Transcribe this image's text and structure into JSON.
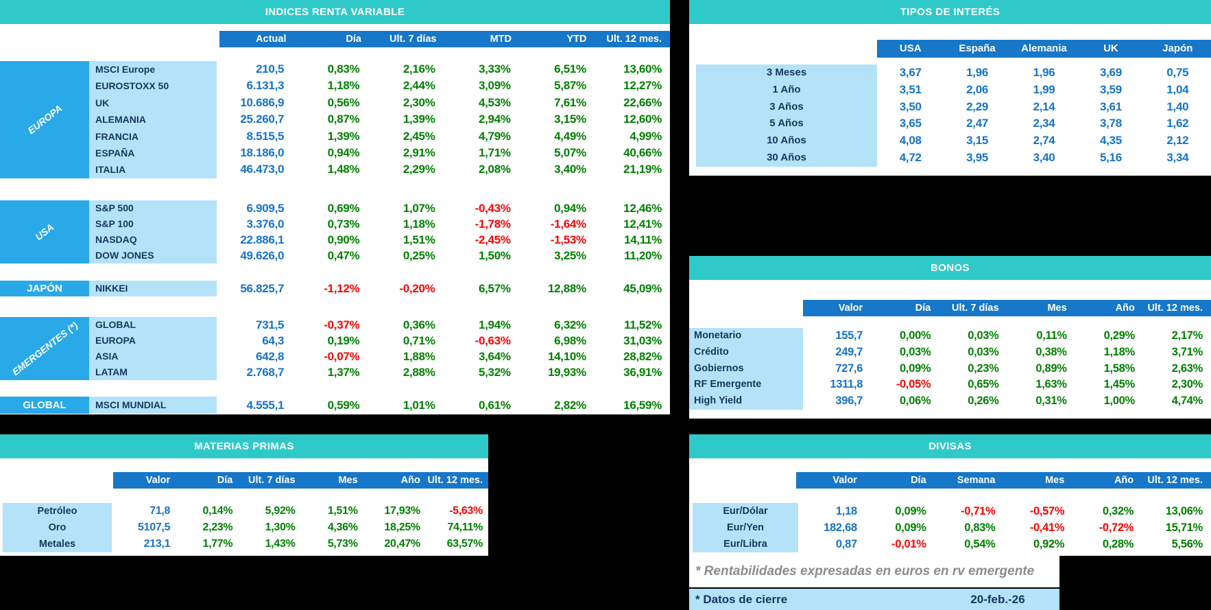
{
  "colors": {
    "teal": "#2FC9C9",
    "header_blue": "#1777C8",
    "group_blue": "#29A9E8",
    "light_blue": "#B3E2F9",
    "navy": "#17375D",
    "value_blue": "#1673C8",
    "positive_green": "#008000",
    "negative_red": "#FF0000",
    "footnote_gray": "#8C8C8C",
    "background": "#000000"
  },
  "footnotes": {
    "emergente_note": "* Rentabilidades expresadas en euros en rv emergente",
    "cierre_label": "* Datos de cierre",
    "cierre_date": "20-feb.-26"
  },
  "chart_data": [
    {
      "id": "indices",
      "type": "table",
      "title": "INDICES RENTA VARIABLE",
      "columns": [
        "Actual",
        "Día",
        "Ult. 7 días",
        "MTD",
        "YTD",
        "Ult. 12 mes."
      ],
      "row_groups": [
        {
          "group": "EUROPA",
          "rows": [
            {
              "name": "MSCI Europe",
              "values": [
                "210,5",
                "0,83%",
                "2,16%",
                "3,33%",
                "6,51%",
                "13,60%"
              ]
            },
            {
              "name": "EUROSTOXX 50",
              "values": [
                "6.131,3",
                "1,18%",
                "2,44%",
                "3,09%",
                "5,87%",
                "12,27%"
              ]
            },
            {
              "name": "UK",
              "values": [
                "10.686,9",
                "0,56%",
                "2,30%",
                "4,53%",
                "7,61%",
                "22,66%"
              ]
            },
            {
              "name": "ALEMANIA",
              "values": [
                "25.260,7",
                "0,87%",
                "1,39%",
                "2,94%",
                "3,15%",
                "12,60%"
              ]
            },
            {
              "name": "FRANCIA",
              "values": [
                "8.515,5",
                "1,39%",
                "2,45%",
                "4,79%",
                "4,49%",
                "4,99%"
              ]
            },
            {
              "name": "ESPAÑA",
              "values": [
                "18.186,0",
                "0,94%",
                "2,91%",
                "1,71%",
                "5,07%",
                "40,66%"
              ]
            },
            {
              "name": "ITALIA",
              "values": [
                "46.473,0",
                "1,48%",
                "2,29%",
                "2,08%",
                "3,40%",
                "21,19%"
              ]
            }
          ]
        },
        {
          "group": "USA",
          "rows": [
            {
              "name": "S&P 500",
              "values": [
                "6.909,5",
                "0,69%",
                "1,07%",
                "-0,43%",
                "0,94%",
                "12,46%"
              ]
            },
            {
              "name": "S&P 100",
              "values": [
                "3.376,0",
                "0,73%",
                "1,18%",
                "-1,78%",
                "-1,64%",
                "12,41%"
              ]
            },
            {
              "name": "NASDAQ",
              "values": [
                "22.886,1",
                "0,90%",
                "1,51%",
                "-2,45%",
                "-1,53%",
                "14,11%"
              ]
            },
            {
              "name": "DOW JONES",
              "values": [
                "49.626,0",
                "0,47%",
                "0,25%",
                "1,50%",
                "3,25%",
                "11,20%"
              ]
            }
          ]
        },
        {
          "group": "JAPÓN",
          "rows": [
            {
              "name": "NIKKEI",
              "values": [
                "56.825,7",
                "-1,12%",
                "-0,20%",
                "6,57%",
                "12,88%",
                "45,09%"
              ]
            }
          ]
        },
        {
          "group": "EMERGENTES (*)",
          "rows": [
            {
              "name": "GLOBAL",
              "values": [
                "731,5",
                "-0,37%",
                "0,36%",
                "1,94%",
                "6,32%",
                "11,52%"
              ]
            },
            {
              "name": "EUROPA",
              "values": [
                "64,3",
                "0,19%",
                "0,71%",
                "-0,63%",
                "6,98%",
                "31,03%"
              ]
            },
            {
              "name": "ASIA",
              "values": [
                "642,8",
                "-0,07%",
                "1,88%",
                "3,64%",
                "14,10%",
                "28,82%"
              ]
            },
            {
              "name": "LATAM",
              "values": [
                "2.768,7",
                "1,37%",
                "2,88%",
                "5,32%",
                "19,93%",
                "36,91%"
              ]
            }
          ]
        },
        {
          "group": "GLOBAL",
          "rows": [
            {
              "name": "MSCI MUNDIAL",
              "values": [
                "4.555,1",
                "0,59%",
                "1,01%",
                "0,61%",
                "2,82%",
                "16,59%"
              ]
            }
          ]
        }
      ]
    },
    {
      "id": "tipos",
      "type": "table",
      "title": "TIPOS DE INTERÉS",
      "columns": [
        "USA",
        "España",
        "Alemania",
        "UK",
        "Japón"
      ],
      "rows": [
        {
          "label": "3 Meses",
          "values": [
            "3,67",
            "1,96",
            "1,96",
            "3,69",
            "0,75"
          ]
        },
        {
          "label": "1 Año",
          "values": [
            "3,51",
            "2,06",
            "1,99",
            "3,59",
            "1,04"
          ]
        },
        {
          "label": "3 Años",
          "values": [
            "3,50",
            "2,29",
            "2,14",
            "3,61",
            "1,40"
          ]
        },
        {
          "label": "5 Años",
          "values": [
            "3,65",
            "2,47",
            "2,34",
            "3,78",
            "1,62"
          ]
        },
        {
          "label": "10 Años",
          "values": [
            "4,08",
            "3,15",
            "2,74",
            "4,35",
            "2,12"
          ]
        },
        {
          "label": "30 Años",
          "values": [
            "4,72",
            "3,95",
            "3,40",
            "5,16",
            "3,34"
          ]
        }
      ]
    },
    {
      "id": "bonos",
      "type": "table",
      "title": "BONOS",
      "columns": [
        "Valor",
        "Día",
        "Ult. 7 días",
        "Mes",
        "Año",
        "Ult. 12 mes."
      ],
      "rows": [
        {
          "label": "Monetario",
          "values": [
            "155,7",
            "0,00%",
            "0,03%",
            "0,11%",
            "0,29%",
            "2,17%"
          ]
        },
        {
          "label": "Crédito",
          "values": [
            "249,7",
            "0,03%",
            "0,03%",
            "0,38%",
            "1,18%",
            "3,71%"
          ]
        },
        {
          "label": "Gobiernos",
          "values": [
            "727,6",
            "0,09%",
            "0,23%",
            "0,89%",
            "1,58%",
            "2,63%"
          ]
        },
        {
          "label": "RF Emergente",
          "values": [
            "1311,8",
            "-0,05%",
            "0,65%",
            "1,63%",
            "1,45%",
            "2,30%"
          ]
        },
        {
          "label": "High Yield",
          "values": [
            "396,7",
            "0,06%",
            "0,26%",
            "0,31%",
            "1,00%",
            "4,74%"
          ]
        }
      ]
    },
    {
      "id": "materias",
      "type": "table",
      "title": "MATERIAS PRIMAS",
      "columns": [
        "Valor",
        "Día",
        "Ult. 7 días",
        "Mes",
        "Año",
        "Ult. 12 mes."
      ],
      "rows": [
        {
          "label": "Petróleo",
          "values": [
            "71,8",
            "0,14%",
            "5,92%",
            "1,51%",
            "17,93%",
            "-5,63%"
          ]
        },
        {
          "label": "Oro",
          "values": [
            "5107,5",
            "2,23%",
            "1,30%",
            "4,36%",
            "18,25%",
            "74,11%"
          ]
        },
        {
          "label": "Metales",
          "values": [
            "213,1",
            "1,77%",
            "1,43%",
            "5,73%",
            "20,47%",
            "63,57%"
          ]
        }
      ]
    },
    {
      "id": "divisas",
      "type": "table",
      "title": "DIVISAS",
      "columns": [
        "Valor",
        "Día",
        "Semana",
        "Mes",
        "Año",
        "Ult. 12 mes."
      ],
      "rows": [
        {
          "label": "Eur/Dólar",
          "values": [
            "1,18",
            "0,09%",
            "-0,71%",
            "-0,57%",
            "0,32%",
            "13,06%"
          ]
        },
        {
          "label": "Eur/Yen",
          "values": [
            "182,68",
            "0,09%",
            "0,83%",
            "-0,41%",
            "-0,72%",
            "15,71%"
          ]
        },
        {
          "label": "Eur/Libra",
          "values": [
            "0,87",
            "-0,01%",
            "0,54%",
            "0,92%",
            "0,28%",
            "5,56%"
          ]
        }
      ]
    }
  ]
}
